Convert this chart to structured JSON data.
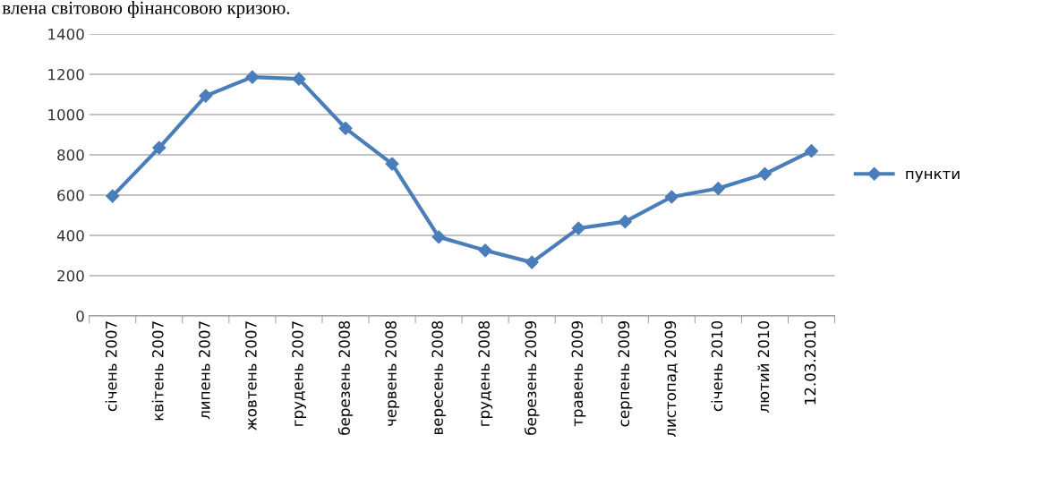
{
  "chart_data": {
    "type": "line",
    "categories": [
      "січень 2007",
      "квітень 2007",
      "липень 2007",
      "жовтень 2007",
      "грудень 2007",
      "березень 2008",
      "червень 2008",
      "вересень 2008",
      "грудень 2008",
      "березень 2009",
      "травень 2009",
      "серпень 2009",
      "листопад 2009",
      "січень 2010",
      "лютий 2010",
      "12.03.2010"
    ],
    "series": [
      {
        "name": "пункти",
        "color": "#4a7ebb",
        "values": [
          595,
          835,
          1093,
          1186,
          1177,
          932,
          755,
          392,
          325,
          266,
          435,
          468,
          591,
          633,
          705,
          819
        ]
      }
    ],
    "ylim": [
      0,
      1400
    ],
    "yticks": [
      0,
      200,
      400,
      600,
      800,
      1000,
      1200,
      1400
    ],
    "grid": "y",
    "legend": "right",
    "marker": "diamond",
    "line_style": "solid",
    "annotations": [
      "влена світовою фінансовою кризою."
    ]
  }
}
